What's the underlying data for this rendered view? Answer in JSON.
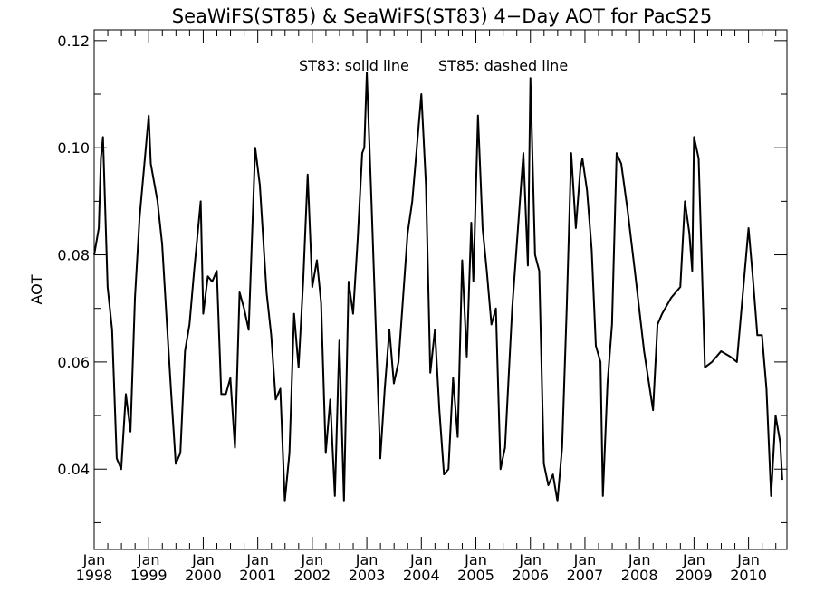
{
  "chart_data": {
    "type": "line",
    "title": "SeaWiFS(ST85) & SeaWiFS(ST83) 4−Day AOT for PacS25",
    "ylabel": "AOT",
    "xlabel": "",
    "annotations": [
      "ST83: solid line",
      "ST85: dashed line"
    ],
    "xlim": [
      "1998-01-01",
      "2010-09-15"
    ],
    "ylim": [
      0.025,
      0.122
    ],
    "y_ticks": [
      {
        "value": 0.04,
        "label": "0.04"
      },
      {
        "value": 0.06,
        "label": "0.06"
      },
      {
        "value": 0.08,
        "label": "0.08"
      },
      {
        "value": 0.1,
        "label": "0.10"
      },
      {
        "value": 0.12,
        "label": "0.12"
      }
    ],
    "x_ticks": [
      {
        "date": "1998-01-01",
        "month": "Jan",
        "year": "1998"
      },
      {
        "date": "1999-01-01",
        "month": "Jan",
        "year": "1999"
      },
      {
        "date": "2000-01-01",
        "month": "Jan",
        "year": "2000"
      },
      {
        "date": "2001-01-01",
        "month": "Jan",
        "year": "2001"
      },
      {
        "date": "2002-01-01",
        "month": "Jan",
        "year": "2002"
      },
      {
        "date": "2003-01-01",
        "month": "Jan",
        "year": "2003"
      },
      {
        "date": "2004-01-01",
        "month": "Jan",
        "year": "2004"
      },
      {
        "date": "2005-01-01",
        "month": "Jan",
        "year": "2005"
      },
      {
        "date": "2006-01-01",
        "month": "Jan",
        "year": "2006"
      },
      {
        "date": "2007-01-01",
        "month": "Jan",
        "year": "2007"
      },
      {
        "date": "2008-01-01",
        "month": "Jan",
        "year": "2008"
      },
      {
        "date": "2009-01-01",
        "month": "Jan",
        "year": "2009"
      },
      {
        "date": "2010-01-01",
        "month": "Jan",
        "year": "2010"
      }
    ],
    "series": [
      {
        "line_style": "solid",
        "color": "#000000",
        "points": [
          [
            "1998-01-01",
            0.08
          ],
          [
            "1998-02-01",
            0.085
          ],
          [
            "1998-02-15",
            0.098
          ],
          [
            "1998-03-01",
            0.102
          ],
          [
            "1998-04-01",
            0.074
          ],
          [
            "1998-05-01",
            0.066
          ],
          [
            "1998-06-01",
            0.042
          ],
          [
            "1998-07-01",
            0.04
          ],
          [
            "1998-08-01",
            0.054
          ],
          [
            "1998-09-01",
            0.047
          ],
          [
            "1998-10-01",
            0.072
          ],
          [
            "1998-11-01",
            0.087
          ],
          [
            "1999-01-01",
            0.106
          ],
          [
            "1999-01-15",
            0.097
          ],
          [
            "1999-03-01",
            0.09
          ],
          [
            "1999-04-01",
            0.082
          ],
          [
            "1999-05-01",
            0.068
          ],
          [
            "1999-06-01",
            0.054
          ],
          [
            "1999-07-01",
            0.041
          ],
          [
            "1999-08-01",
            0.043
          ],
          [
            "1999-09-01",
            0.062
          ],
          [
            "1999-10-01",
            0.067
          ],
          [
            "1999-11-01",
            0.077
          ],
          [
            "1999-12-15",
            0.09
          ],
          [
            "2000-01-01",
            0.069
          ],
          [
            "2000-02-01",
            0.076
          ],
          [
            "2000-03-01",
            0.075
          ],
          [
            "2000-04-01",
            0.077
          ],
          [
            "2000-05-01",
            0.054
          ],
          [
            "2000-06-01",
            0.054
          ],
          [
            "2000-07-01",
            0.057
          ],
          [
            "2000-08-01",
            0.044
          ],
          [
            "2000-09-01",
            0.073
          ],
          [
            "2000-10-01",
            0.07
          ],
          [
            "2000-11-01",
            0.066
          ],
          [
            "2000-12-15",
            0.1
          ],
          [
            "2001-01-15",
            0.093
          ],
          [
            "2001-03-01",
            0.073
          ],
          [
            "2001-04-01",
            0.065
          ],
          [
            "2001-05-01",
            0.053
          ],
          [
            "2001-06-01",
            0.055
          ],
          [
            "2001-07-01",
            0.034
          ],
          [
            "2001-08-01",
            0.043
          ],
          [
            "2001-09-01",
            0.069
          ],
          [
            "2001-10-01",
            0.059
          ],
          [
            "2001-11-01",
            0.075
          ],
          [
            "2001-12-01",
            0.095
          ],
          [
            "2002-01-01",
            0.074
          ],
          [
            "2002-02-01",
            0.079
          ],
          [
            "2002-03-01",
            0.071
          ],
          [
            "2002-04-01",
            0.043
          ],
          [
            "2002-05-01",
            0.053
          ],
          [
            "2002-06-01",
            0.035
          ],
          [
            "2002-07-01",
            0.064
          ],
          [
            "2002-08-01",
            0.034
          ],
          [
            "2002-09-01",
            0.075
          ],
          [
            "2002-10-01",
            0.069
          ],
          [
            "2002-11-01",
            0.083
          ],
          [
            "2002-12-01",
            0.099
          ],
          [
            "2002-12-15",
            0.1
          ],
          [
            "2003-01-01",
            0.114
          ],
          [
            "2003-02-01",
            0.09
          ],
          [
            "2003-04-01",
            0.042
          ],
          [
            "2003-05-01",
            0.055
          ],
          [
            "2003-06-01",
            0.066
          ],
          [
            "2003-07-01",
            0.056
          ],
          [
            "2003-08-01",
            0.06
          ],
          [
            "2003-10-01",
            0.084
          ],
          [
            "2003-11-01",
            0.09
          ],
          [
            "2004-01-01",
            0.11
          ],
          [
            "2004-02-01",
            0.093
          ],
          [
            "2004-03-01",
            0.058
          ],
          [
            "2004-04-01",
            0.066
          ],
          [
            "2004-05-01",
            0.051
          ],
          [
            "2004-06-01",
            0.039
          ],
          [
            "2004-07-01",
            0.04
          ],
          [
            "2004-08-01",
            0.057
          ],
          [
            "2004-09-01",
            0.046
          ],
          [
            "2004-10-01",
            0.079
          ],
          [
            "2004-11-01",
            0.061
          ],
          [
            "2004-12-01",
            0.086
          ],
          [
            "2004-12-15",
            0.075
          ],
          [
            "2005-01-15",
            0.106
          ],
          [
            "2005-02-15",
            0.085
          ],
          [
            "2005-03-15",
            0.077
          ],
          [
            "2005-04-15",
            0.067
          ],
          [
            "2005-05-15",
            0.07
          ],
          [
            "2005-06-15",
            0.04
          ],
          [
            "2005-07-15",
            0.044
          ],
          [
            "2005-09-01",
            0.07
          ],
          [
            "2005-11-15",
            0.099
          ],
          [
            "2005-12-15",
            0.078
          ],
          [
            "2006-01-01",
            0.113
          ],
          [
            "2006-02-01",
            0.08
          ],
          [
            "2006-03-01",
            0.077
          ],
          [
            "2006-04-01",
            0.041
          ],
          [
            "2006-05-01",
            0.037
          ],
          [
            "2006-06-01",
            0.039
          ],
          [
            "2006-07-01",
            0.034
          ],
          [
            "2006-08-01",
            0.044
          ],
          [
            "2006-09-01",
            0.07
          ],
          [
            "2006-10-01",
            0.099
          ],
          [
            "2006-11-01",
            0.085
          ],
          [
            "2006-12-01",
            0.096
          ],
          [
            "2006-12-15",
            0.098
          ],
          [
            "2007-01-15",
            0.092
          ],
          [
            "2007-02-15",
            0.081
          ],
          [
            "2007-03-15",
            0.063
          ],
          [
            "2007-04-15",
            0.06
          ],
          [
            "2007-05-01",
            0.035
          ],
          [
            "2007-06-01",
            0.056
          ],
          [
            "2007-07-01",
            0.067
          ],
          [
            "2007-08-01",
            0.099
          ],
          [
            "2007-09-01",
            0.097
          ],
          [
            "2007-10-15",
            0.088
          ],
          [
            "2007-12-01",
            0.077
          ],
          [
            "2008-02-01",
            0.062
          ],
          [
            "2008-04-01",
            0.051
          ],
          [
            "2008-05-01",
            0.067
          ],
          [
            "2008-06-01",
            0.069
          ],
          [
            "2008-08-01",
            0.072
          ],
          [
            "2008-10-01",
            0.074
          ],
          [
            "2008-11-01",
            0.09
          ],
          [
            "2008-12-01",
            0.084
          ],
          [
            "2008-12-20",
            0.077
          ],
          [
            "2009-01-01",
            0.102
          ],
          [
            "2009-02-01",
            0.098
          ],
          [
            "2009-03-15",
            0.059
          ],
          [
            "2009-05-01",
            0.06
          ],
          [
            "2009-07-01",
            0.062
          ],
          [
            "2009-09-01",
            0.061
          ],
          [
            "2009-10-15",
            0.06
          ],
          [
            "2010-01-01",
            0.085
          ],
          [
            "2010-02-01",
            0.075
          ],
          [
            "2010-03-01",
            0.065
          ],
          [
            "2010-04-01",
            0.065
          ],
          [
            "2010-05-01",
            0.055
          ],
          [
            "2010-06-01",
            0.035
          ],
          [
            "2010-07-01",
            0.05
          ],
          [
            "2010-08-01",
            0.045
          ],
          [
            "2010-08-15",
            0.038
          ]
        ]
      }
    ]
  }
}
